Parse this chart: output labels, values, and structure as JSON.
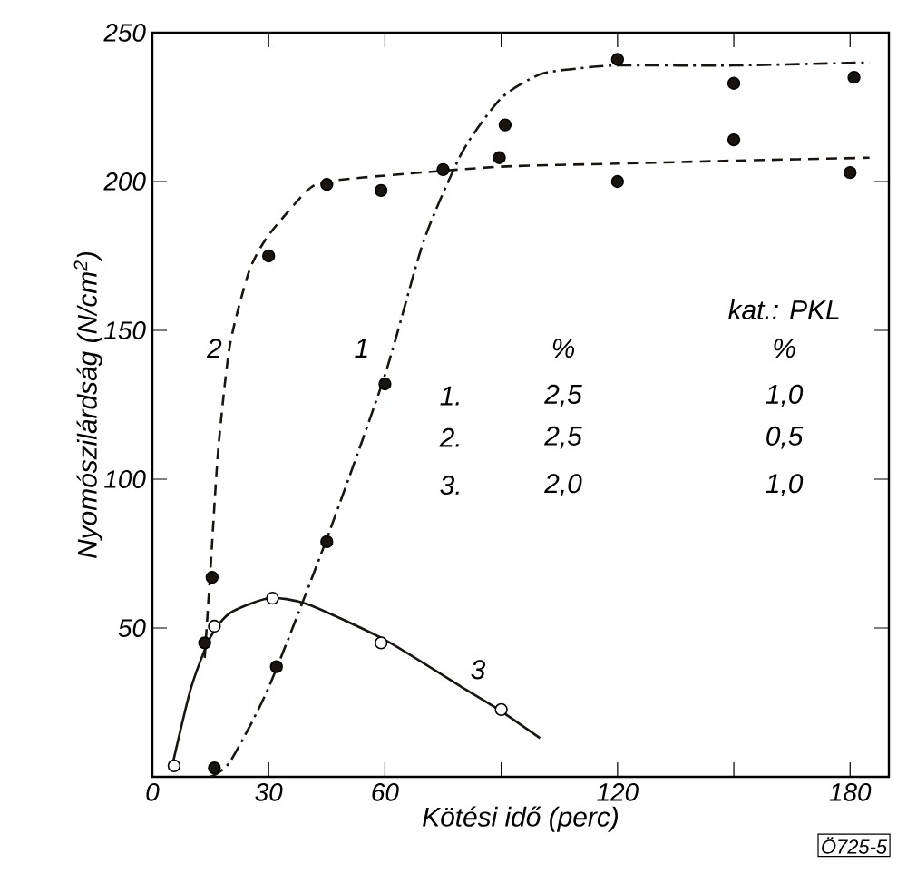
{
  "chart_data": {
    "type": "line",
    "xlabel": "Kötési idő (perc)",
    "ylabel": "Nyomószilárdság (N/cm$^{2}$)",
    "xlim": [
      0,
      190
    ],
    "ylim": [
      0,
      250
    ],
    "xticks": [
      0,
      30,
      60,
      {
        "value": 90,
        "label": null
      },
      120,
      {
        "value": 150,
        "label": null
      },
      180
    ],
    "yticks": [
      50,
      100,
      150,
      200,
      250
    ],
    "grid": false,
    "series": [
      {
        "color": "#1a1410",
        "line_style": "dashdot",
        "marker": "none",
        "x": [
          15,
          20,
          30,
          45,
          60,
          70,
          80,
          90,
          100,
          110,
          120,
          150,
          185
        ],
        "values": [
          0,
          5,
          30,
          80,
          135,
          180,
          210,
          228,
          236,
          238,
          239,
          239,
          240
        ]
      },
      {
        "color": "#1a1410",
        "line_style": "dashed",
        "marker": "none",
        "x": [
          13.5,
          15,
          17,
          20,
          25,
          30,
          40,
          45,
          60,
          90,
          120,
          150,
          185
        ],
        "values": [
          40,
          70,
          110,
          145,
          170,
          182,
          197,
          200,
          202,
          205,
          206,
          207,
          208
        ]
      },
      {
        "color": "#1a1410",
        "line_style": "solid",
        "marker": "none",
        "x": [
          5,
          10,
          15,
          20,
          30,
          40,
          60,
          80,
          90,
          100
        ],
        "values": [
          3,
          30,
          47,
          55,
          60,
          58,
          46,
          30,
          22,
          13
        ]
      },
      {
        "type": "scatter",
        "color": "#1a1410",
        "marker": "circle",
        "x": [
          16,
          32,
          45,
          60,
          91,
          120,
          150,
          181
        ],
        "values": [
          3,
          37,
          79,
          132,
          219,
          241,
          233,
          235
        ]
      },
      {
        "type": "scatter",
        "color": "#1a1410",
        "marker": "circle",
        "x": [
          13.5,
          15.4,
          30,
          45,
          59,
          75,
          89.5,
          120,
          150,
          180
        ],
        "values": [
          45,
          67,
          175,
          199,
          197,
          204,
          208,
          200,
          214,
          203
        ]
      },
      {
        "type": "scatter",
        "color": "#ffffff",
        "marker": "circle",
        "x": [
          5.6,
          16,
          31,
          59,
          90
        ],
        "values": [
          3.7,
          50.6,
          60,
          45,
          22.6
        ]
      }
    ],
    "annotations": [
      "1",
      "2",
      "3",
      "kat.: PKL",
      "%",
      "%",
      "1.",
      "2,5",
      "1,0",
      "2.",
      "2,5",
      "0,5",
      "3.",
      "2,0",
      "1,0",
      "Ö725-5"
    ]
  }
}
